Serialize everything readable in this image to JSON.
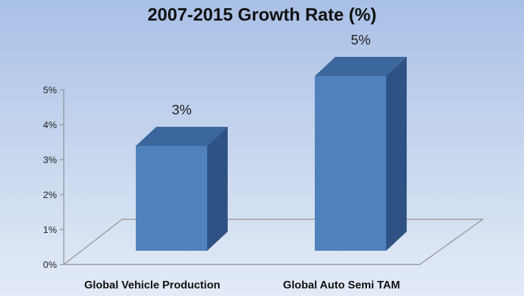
{
  "chart_data": {
    "type": "bar",
    "title": "2007-2015 Growth Rate (%)",
    "categories": [
      "Global Vehicle Production",
      "Global Auto Semi TAM"
    ],
    "values": [
      3,
      5
    ],
    "data_labels": [
      "3%",
      "5%"
    ],
    "ylim": [
      0,
      5
    ],
    "y_ticks": [
      "0%",
      "1%",
      "2%",
      "3%",
      "4%",
      "5%"
    ],
    "grid": false,
    "legend": "none",
    "style": "3d-column",
    "colors": {
      "bar_front": "#4f81bd",
      "bar_top": "#3b679c",
      "bar_side": "#2f5284",
      "floor_line": "#8c8c8c"
    }
  }
}
